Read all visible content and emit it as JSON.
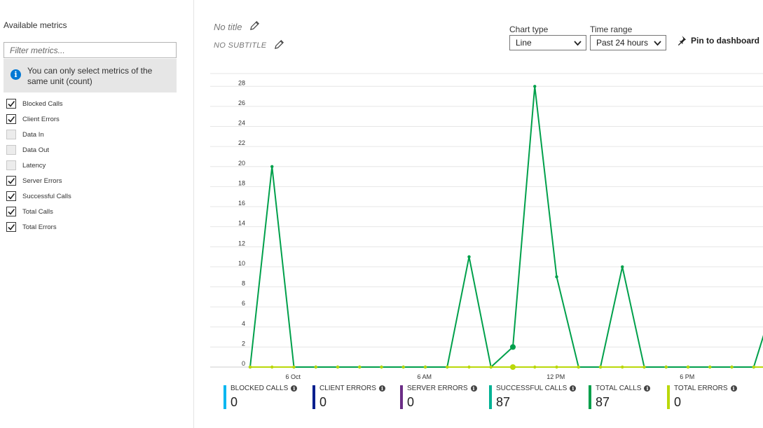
{
  "sidebar": {
    "title": "Available metrics",
    "filter_placeholder": "Filter metrics...",
    "info": "You can only select metrics of the same unit (count)",
    "metrics": [
      {
        "label": "Blocked Calls",
        "checked": true
      },
      {
        "label": "Client Errors",
        "checked": true
      },
      {
        "label": "Data In",
        "checked": false
      },
      {
        "label": "Data Out",
        "checked": false
      },
      {
        "label": "Latency",
        "checked": false
      },
      {
        "label": "Server Errors",
        "checked": true
      },
      {
        "label": "Successful Calls",
        "checked": true
      },
      {
        "label": "Total Calls",
        "checked": true
      },
      {
        "label": "Total Errors",
        "checked": true
      }
    ]
  },
  "header": {
    "title": "No title",
    "subtitle": "NO SUBTITLE",
    "chart_type_label": "Chart type",
    "chart_type_value": "Line",
    "time_range_label": "Time range",
    "time_range_value": "Past 24 hours",
    "pin_label": "Pin to dashboard"
  },
  "colors": {
    "blocked": "#00b7f1",
    "client": "#001f8e",
    "server": "#6b2d86",
    "successful": "#00b294",
    "total": "#00a04b",
    "total_errors": "#bad80a"
  },
  "chart_data": {
    "type": "line",
    "x_ticks": [
      "6 Oct",
      "6 AM",
      "12 PM",
      "6 PM"
    ],
    "x_tick_index": [
      1,
      7,
      13,
      19
    ],
    "ylim": [
      0,
      29
    ],
    "y_ticks": [
      0,
      2,
      4,
      6,
      8,
      10,
      12,
      14,
      16,
      18,
      20,
      22,
      24,
      26,
      28
    ],
    "series": [
      {
        "name": "TOTAL CALLS",
        "color": "#00a04b",
        "values": [
          0,
          20,
          0,
          0,
          0,
          0,
          0,
          0,
          0,
          0,
          11,
          0,
          2,
          28,
          9,
          0,
          0,
          10,
          0,
          0,
          0,
          0,
          0,
          0,
          7
        ]
      },
      {
        "name": "TOTAL ERRORS",
        "color": "#bad80a",
        "values": [
          0,
          0,
          0,
          0,
          0,
          0,
          0,
          0,
          0,
          0,
          0,
          0,
          0,
          0,
          0,
          0,
          0,
          0,
          0,
          0,
          0,
          0,
          0,
          0,
          0
        ]
      }
    ]
  },
  "legend": [
    {
      "label": "BLOCKED CALLS",
      "value": "0",
      "color": "#00b7f1"
    },
    {
      "label": "CLIENT ERRORS",
      "value": "0",
      "color": "#001f8e"
    },
    {
      "label": "SERVER ERRORS",
      "value": "0",
      "color": "#6b2d86"
    },
    {
      "label": "SUCCESSFUL CALLS",
      "value": "87",
      "color": "#00b294"
    },
    {
      "label": "TOTAL CALLS",
      "value": "87",
      "color": "#00a04b"
    },
    {
      "label": "TOTAL ERRORS",
      "value": "0",
      "color": "#bad80a"
    }
  ]
}
